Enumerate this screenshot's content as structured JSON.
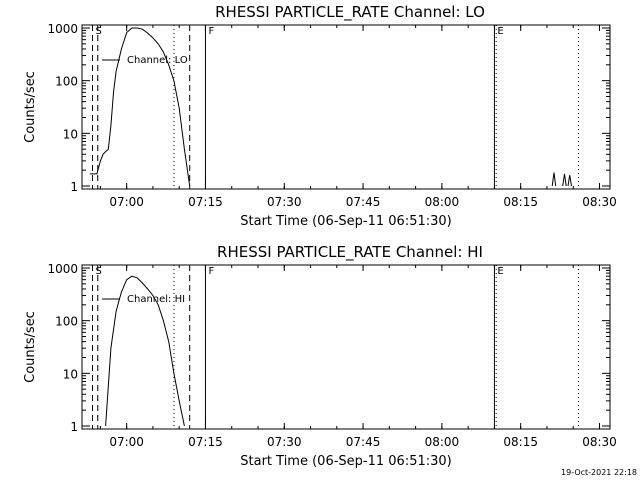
{
  "footer": {
    "timestamp": "19-Oct-2021 22:18"
  },
  "chart_data": [
    {
      "type": "line",
      "title": "RHESSI PARTICLE_RATE Channel: LO",
      "xlabel": "Start Time (06-Sep-11 06:51:30)",
      "ylabel": "Counts/sec",
      "y_scale": "log",
      "ylim": [
        1,
        1000
      ],
      "xlim": [
        "06:51:30",
        "08:32:00"
      ],
      "xticks": [
        "07:00",
        "07:15",
        "07:30",
        "07:45",
        "08:00",
        "08:15",
        "08:30"
      ],
      "yticks": [
        "1",
        "10",
        "100",
        "1000"
      ],
      "legend": {
        "label": "Channel: LO",
        "placement": "top-left"
      },
      "markers": [
        {
          "label": "S",
          "time": "06:53:30",
          "style": "dashed"
        },
        {
          "label": "",
          "time": "06:54:30",
          "style": "dashed"
        },
        {
          "label": "",
          "time": "07:09:00",
          "style": "dotted"
        },
        {
          "label": "",
          "time": "07:12:00",
          "style": "dashed"
        },
        {
          "label": "F",
          "time": "07:15:00",
          "style": "solid"
        },
        {
          "label": "E",
          "time": "08:10:00",
          "style": "solid"
        },
        {
          "label": "",
          "time": "08:10:20",
          "style": "dotted"
        },
        {
          "label": "",
          "time": "08:26:00",
          "style": "dotted"
        }
      ],
      "series": [
        {
          "segments": [
            {
              "x": [
                "06:53:00",
                "06:54:20",
                "06:55:00",
                "06:55:30",
                "06:56:00",
                "06:56:30",
                "06:57:00",
                "06:57:30",
                "06:58:00",
                "06:59:00",
                "07:00:00",
                "07:01:00",
                "07:02:00",
                "07:03:00",
                "07:04:00",
                "07:05:00",
                "07:06:00",
                "07:07:00",
                "07:08:00",
                "07:09:00",
                "07:10:00",
                "07:11:00",
                "07:12:00"
              ],
              "y": [
                1.7,
                1.7,
                3.0,
                4.0,
                4.5,
                5.0,
                14,
                60,
                150,
                400,
                820,
                1000,
                1000,
                950,
                800,
                650,
                500,
                350,
                200,
                100,
                30,
                5,
                1
              ]
            },
            {
              "x": [
                "08:21:00",
                "08:21:20",
                "08:21:40"
              ],
              "y": [
                1,
                1.8,
                1
              ]
            },
            {
              "x": [
                "08:23:00",
                "08:23:20",
                "08:23:40"
              ],
              "y": [
                1,
                1.7,
                1
              ]
            },
            {
              "x": [
                "08:24:00",
                "08:24:20",
                "08:24:40"
              ],
              "y": [
                1,
                1.6,
                1
              ]
            }
          ]
        }
      ]
    },
    {
      "type": "line",
      "title": "RHESSI PARTICLE_RATE Channel: HI",
      "xlabel": "Start Time (06-Sep-11 06:51:30)",
      "ylabel": "Counts/sec",
      "y_scale": "log",
      "ylim": [
        1,
        1000
      ],
      "xlim": [
        "06:51:30",
        "08:32:00"
      ],
      "xticks": [
        "07:00",
        "07:15",
        "07:30",
        "07:45",
        "08:00",
        "08:15",
        "08:30"
      ],
      "yticks": [
        "1",
        "10",
        "100",
        "1000"
      ],
      "legend": {
        "label": "Channel: HI",
        "placement": "top-left"
      },
      "markers": [
        {
          "label": "S",
          "time": "06:53:30",
          "style": "dashed"
        },
        {
          "label": "",
          "time": "06:54:30",
          "style": "dashed"
        },
        {
          "label": "",
          "time": "07:09:00",
          "style": "dotted"
        },
        {
          "label": "",
          "time": "07:12:00",
          "style": "dashed"
        },
        {
          "label": "F",
          "time": "07:15:00",
          "style": "solid"
        },
        {
          "label": "E",
          "time": "08:10:00",
          "style": "solid"
        },
        {
          "label": "",
          "time": "08:10:20",
          "style": "dotted"
        },
        {
          "label": "",
          "time": "08:26:00",
          "style": "dotted"
        }
      ],
      "series": [
        {
          "segments": [
            {
              "x": [
                "06:56:00",
                "06:57:00",
                "06:58:00",
                "06:59:00",
                "07:00:00",
                "07:01:00",
                "07:02:00",
                "07:03:00",
                "07:04:00",
                "07:05:00",
                "07:06:00",
                "07:07:00",
                "07:08:00",
                "07:09:00",
                "07:10:00",
                "07:11:00"
              ],
              "y": [
                1,
                30,
                150,
                350,
                600,
                700,
                650,
                520,
                400,
                300,
                200,
                100,
                40,
                10,
                3,
                1
              ]
            }
          ]
        }
      ]
    }
  ]
}
